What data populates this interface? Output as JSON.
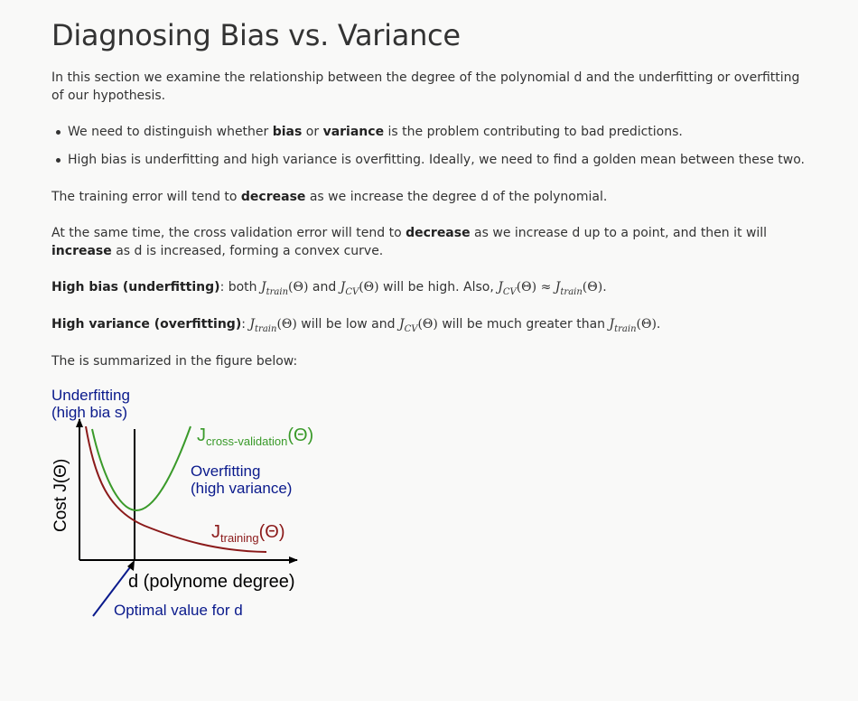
{
  "title": "Diagnosing Bias vs. Variance",
  "intro": "In this section we examine the relationship between the degree of the polynomial d and the underfitting or overfitting of our hypothesis.",
  "bullets": [
    {
      "pre": "We need to distinguish whether ",
      "b1": "bias",
      "mid": " or ",
      "b2": "variance",
      "post": " is the problem contributing to bad predictions."
    },
    {
      "text": "High bias is underfitting and high variance is overfitting. Ideally, we need to find a golden mean between these two."
    }
  ],
  "training_error": {
    "pre": "The training error will tend to ",
    "bold": "decrease",
    "post": " as we increase the degree d of the polynomial."
  },
  "cv_error": {
    "pre": "At the same time, the cross validation error will tend to ",
    "bold1": "decrease",
    "mid": " as we increase d up to a point, and then it will ",
    "bold2": "increase",
    "post": " as d is increased, forming a convex curve."
  },
  "high_bias": {
    "label": "High bias (underfitting)",
    "t1": ": both ",
    "t2": " and ",
    "t3": " will be high. Also, ",
    "t4": "."
  },
  "high_variance": {
    "label": "High variance (overfitting)",
    "t1": ": ",
    "t2": " will be low and ",
    "t3": " will be much greater than ",
    "t4": "."
  },
  "math": {
    "J": "J",
    "train": "train",
    "cv": "CV",
    "theta": "(Θ)",
    "approx": " ≈ "
  },
  "summary": "The is summarized in the figure below:",
  "figure": {
    "underfitting_line1": "Underfitting",
    "underfitting_line2": "(high bia s)",
    "y_axis_label": "Cost J(Θ)",
    "cv_J": "J",
    "cv_sub": "cross-validation",
    "cv_theta": "(Θ)",
    "overfitting_line1": "Overfitting",
    "overfitting_line2": "(high variance)",
    "train_J": "J",
    "train_sub": "training",
    "train_theta": "(Θ)",
    "x_axis_label": "d (polynome degree)",
    "optimal_label": "Optimal value for d",
    "colors": {
      "navy": "#0a1a8c",
      "green": "#3a9a2a",
      "red": "#8b1a1a",
      "axis": "#000000"
    }
  }
}
